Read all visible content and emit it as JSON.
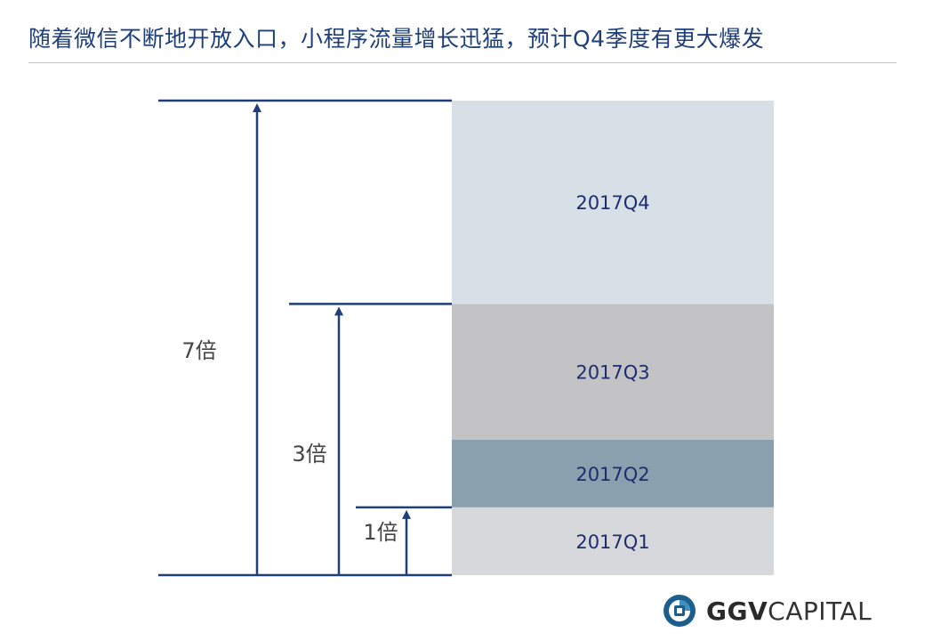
{
  "title": "随着微信不断地开放入口，小程序流量增长迅猛，预计Q4季度有更大爆发",
  "logo": {
    "bold": "GGV",
    "light": "CAPITAL"
  },
  "chart_data": {
    "type": "bar",
    "orientation": "stacked-vertical",
    "categories": [
      "2017Q1",
      "2017Q2",
      "2017Q3",
      "2017Q4"
    ],
    "values": [
      1,
      1,
      2,
      3
    ],
    "colors": [
      "#d6d8db",
      "#8ba0af",
      "#c3c3c6",
      "#d6e0e6"
    ],
    "cumulative_multipliers": [
      {
        "label": "1倍",
        "value": 1
      },
      {
        "label": "3倍",
        "value": 3
      },
      {
        "label": "7倍",
        "value": 7
      }
    ],
    "legend": "none",
    "grid": false
  }
}
